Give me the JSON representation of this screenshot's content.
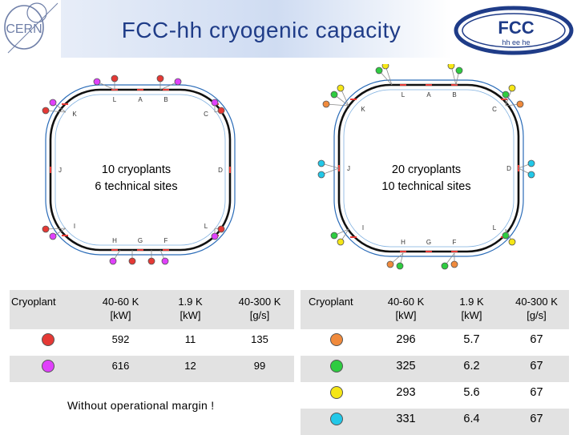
{
  "header": {
    "title": "FCC-hh cryogenic capacity",
    "cern_logo_text": "CERN",
    "fcc_logo_text": "FCC",
    "fcc_logo_subtext": "hh ee he"
  },
  "left_ring": {
    "caption_line1": "10 cryoplants",
    "caption_line2": "6 technical sites",
    "site_labels": [
      "L",
      "A",
      "B",
      "C",
      "D",
      "L",
      "F",
      "G",
      "H",
      "I",
      "J",
      "K"
    ]
  },
  "right_ring": {
    "caption_line1": "20 cryoplants",
    "caption_line2": "10 technical sites",
    "site_labels": [
      "L",
      "A",
      "B",
      "C",
      "D",
      "L",
      "F",
      "G",
      "H",
      "I",
      "J",
      "K"
    ]
  },
  "colors": {
    "red": "#e53935",
    "magenta": "#e040fb",
    "orange": "#f08a3c",
    "green": "#2ecc40",
    "yellow": "#f5e616",
    "cyan": "#22c8e8",
    "ring": "#111111",
    "beam": "#2b6cb8",
    "title": "#1f3c88"
  },
  "left_table": {
    "headers": [
      "Cryoplant",
      "40-60 K\n[kW]",
      "1.9 K\n[kW]",
      "40-300 K\n[g/s]"
    ],
    "rows": [
      {
        "dot_color": "#e53935",
        "values": [
          "592",
          "11",
          "135"
        ]
      },
      {
        "dot_color": "#e040fb",
        "values": [
          "616",
          "12",
          "99"
        ]
      }
    ]
  },
  "right_table": {
    "headers": [
      "Cryoplant",
      "40-60 K\n[kW]",
      "1.9 K\n[kW]",
      "40-300 K\n[g/s]"
    ],
    "rows": [
      {
        "dot_color": "#f08a3c",
        "values": [
          "296",
          "5.7",
          "67"
        ]
      },
      {
        "dot_color": "#2ecc40",
        "values": [
          "325",
          "6.2",
          "67"
        ]
      },
      {
        "dot_color": "#f5e616",
        "values": [
          "293",
          "5.6",
          "67"
        ]
      },
      {
        "dot_color": "#22c8e8",
        "values": [
          "331",
          "6.4",
          "67"
        ]
      }
    ]
  },
  "note": "Without operational margin !"
}
